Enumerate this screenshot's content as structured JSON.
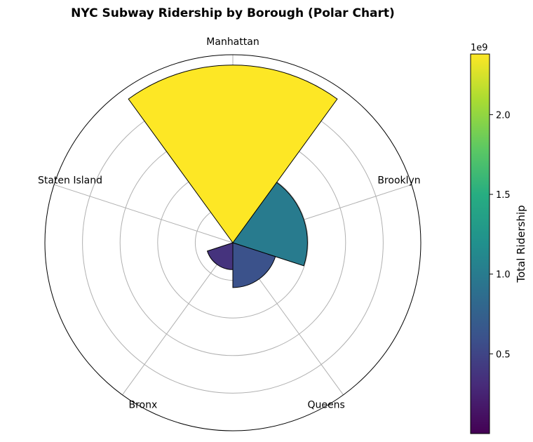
{
  "chart_data": {
    "type": "polar-bar",
    "title": "NYC Subway Ridership by Borough (Polar Chart)",
    "categories": [
      "Manhattan",
      "Brooklyn",
      "Queens",
      "Bronx",
      "Staten Island"
    ],
    "values": [
      2380000000,
      1000000000,
      600000000,
      360000000,
      0
    ],
    "colormap": "viridis",
    "colorbar": {
      "label": "Total Ridership",
      "offset_text": "1e9",
      "ticks": [
        0.5,
        1.0,
        1.5,
        2.0
      ],
      "tick_labels": [
        "0.5",
        "1.0",
        "1.5",
        "2.0"
      ],
      "range": [
        0.0,
        2.38
      ]
    },
    "grid": true
  }
}
